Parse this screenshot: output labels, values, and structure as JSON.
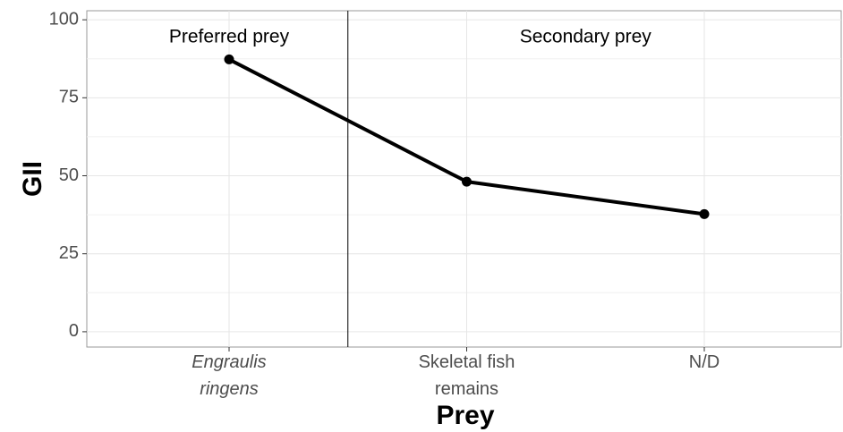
{
  "chart_data": {
    "type": "line",
    "x_label": "Prey",
    "y_label": "GII",
    "categories": [
      "Engraulis\nringens",
      "Skeletal fish\nremains",
      "N/D"
    ],
    "values": [
      87.3,
      48.1,
      37.7
    ],
    "color": "#000000",
    "ylim": [
      -4.9,
      102.9
    ],
    "yticks": [
      0,
      25,
      50,
      75,
      100
    ],
    "grid": true,
    "annotations": [
      "Preferred prey",
      "Secondary prey"
    ]
  }
}
